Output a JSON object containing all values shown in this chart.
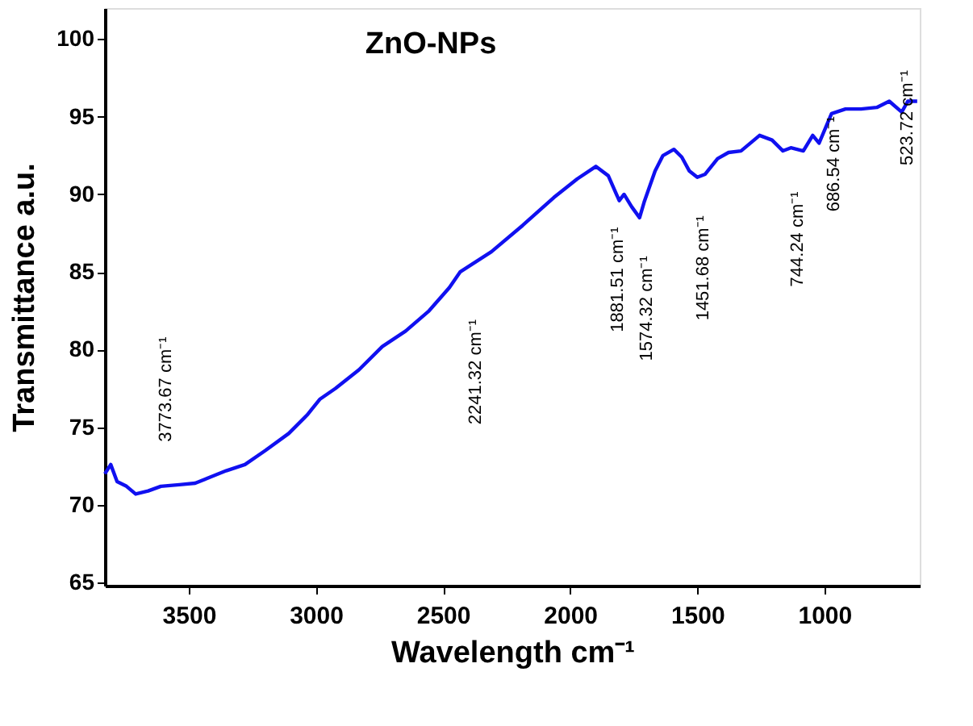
{
  "chart_data": {
    "type": "line",
    "title": "ZnO-NPs",
    "xlabel": "Wavelength cm⁻¹",
    "ylabel": "Transmittance a.u.",
    "xlim": [
      3830,
      625
    ],
    "ylim": [
      64.8,
      102
    ],
    "xticks": [
      3500,
      3000,
      2500,
      2000,
      1500,
      1000
    ],
    "yticks": [
      65,
      70,
      75,
      80,
      85,
      90,
      95,
      100
    ],
    "grid": false,
    "marker": "none",
    "line_style": "solid",
    "series": [
      {
        "color": "#1010f0",
        "x": [
          3830,
          3807,
          3782,
          3745,
          3709,
          3660,
          3610,
          3537,
          3475,
          3414,
          3353,
          3279,
          3199,
          3107,
          3046,
          3034,
          2985,
          2923,
          2831,
          2739,
          2647,
          2555,
          2475,
          2433,
          2310,
          2187,
          2064,
          1972,
          1899,
          1850,
          1807,
          1788,
          1758,
          1727,
          1709,
          1666,
          1635,
          1592,
          1561,
          1531,
          1500,
          1469,
          1420,
          1377,
          1328,
          1255,
          1206,
          1163,
          1132,
          1083,
          1046,
          1021,
          972,
          917,
          856,
          794,
          745,
          696,
          672,
          635
        ],
        "values": [
          72.0,
          72.6,
          71.5,
          71.2,
          70.7,
          70.9,
          71.2,
          71.3,
          71.4,
          71.8,
          72.2,
          72.6,
          73.5,
          74.6,
          75.6,
          75.8,
          76.8,
          77.5,
          78.7,
          80.2,
          81.2,
          82.5,
          84.0,
          85.0,
          86.3,
          88.0,
          89.8,
          91.0,
          91.8,
          91.2,
          89.6,
          90.0,
          89.2,
          88.5,
          89.5,
          91.5,
          92.5,
          92.9,
          92.4,
          91.5,
          91.1,
          91.3,
          92.3,
          92.7,
          92.8,
          93.8,
          93.5,
          92.8,
          93.0,
          92.8,
          93.8,
          93.3,
          95.2,
          95.5,
          95.5,
          95.6,
          96.0,
          95.3,
          96.0,
          96.0
        ]
      }
    ],
    "annotations": [
      "3773.67 cm⁻¹",
      "2241.32 cm⁻¹",
      "1881.51 cm⁻¹",
      "1574.32 cm⁻¹",
      "1451.68 cm⁻¹",
      "744.24 cm⁻¹",
      "686.54 cm⁻¹",
      "523.72 cm⁻¹"
    ]
  }
}
